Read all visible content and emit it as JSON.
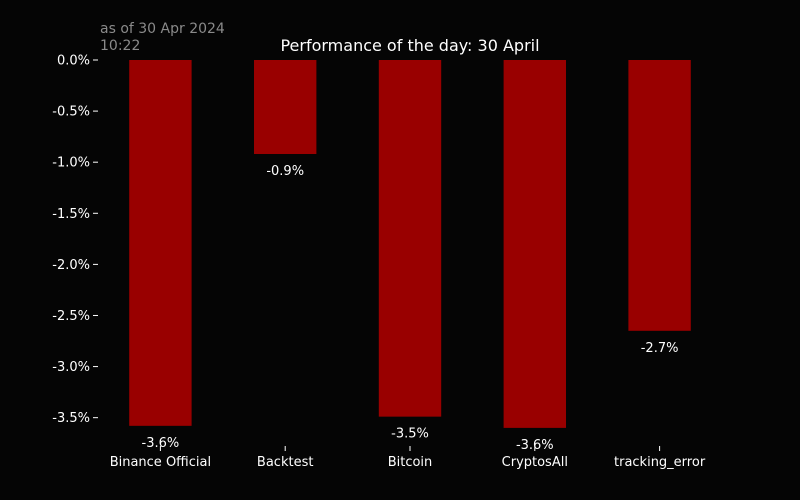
{
  "timestamp": "as of 30 Apr 2024\n10:22",
  "chart_data": {
    "type": "bar",
    "title": "Performance of the day: 30 April",
    "xlabel": "",
    "ylabel": "",
    "categories": [
      "Binance Official",
      "Backtest",
      "Bitcoin",
      "CryptosAll",
      "tracking_error"
    ],
    "values": [
      -3.58,
      -0.92,
      -3.49,
      -3.6,
      -2.65
    ],
    "data_labels": [
      "-3.6%",
      "-0.9%",
      "-3.5%",
      "-3.6%",
      "-2.7%"
    ],
    "ylim": [
      -3.65,
      0.0
    ],
    "yticks": [
      0.0,
      -0.5,
      -1.0,
      -1.5,
      -2.0,
      -2.5,
      -3.0,
      -3.5
    ],
    "ytick_labels": [
      "0.0%",
      "-0.5%",
      "-1.0%",
      "-1.5%",
      "-2.0%",
      "-2.5%",
      "-3.0%",
      "-3.5%"
    ],
    "grid": false,
    "legend": false,
    "colors": {
      "bar": "#990000",
      "background": "#050505",
      "text": "#ffffff",
      "timestamp": "#8a8a8a"
    }
  }
}
